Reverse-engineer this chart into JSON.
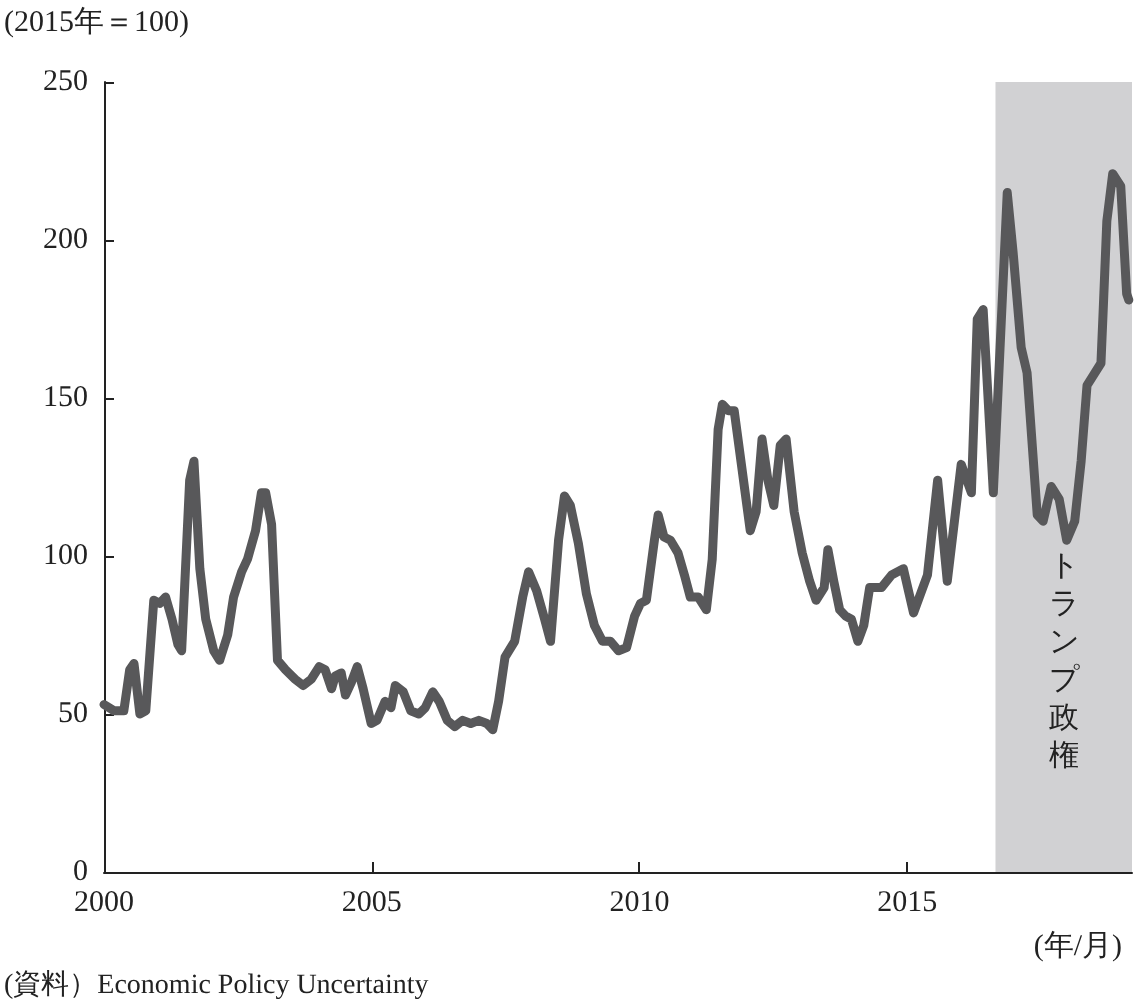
{
  "chart_data": {
    "type": "line",
    "ylabel": "(2015年＝100)",
    "xlabel": "(年/月)",
    "annotations": [
      "(資料）Economic Policy Uncertainty"
    ],
    "x": [
      2000.0,
      2000.19,
      2000.37,
      2000.48,
      2000.56,
      2000.67,
      2000.78,
      2000.93,
      2001.04,
      2001.15,
      2001.27,
      2001.38,
      2001.45,
      2001.6,
      2001.68,
      2001.79,
      2001.9,
      2002.05,
      2002.16,
      2002.31,
      2002.42,
      2002.57,
      2002.68,
      2002.83,
      2002.94,
      2003.02,
      2003.13,
      2003.24,
      2003.39,
      2003.57,
      2003.72,
      2003.87,
      2004.02,
      2004.13,
      2004.25,
      2004.32,
      2004.43,
      2004.51,
      2004.62,
      2004.73,
      2004.84,
      2004.99,
      2005.1,
      2005.25,
      2005.36,
      2005.44,
      2005.59,
      2005.73,
      2005.88,
      2006.0,
      2006.14,
      2006.26,
      2006.41,
      2006.55,
      2006.7,
      2006.85,
      2007.0,
      2007.15,
      2007.26,
      2007.37,
      2007.49,
      2007.67,
      2007.82,
      2007.93,
      2008.08,
      2008.23,
      2008.34,
      2008.49,
      2008.6,
      2008.71,
      2008.86,
      2009.01,
      2009.16,
      2009.31,
      2009.46,
      2009.61,
      2009.76,
      2009.91,
      2010.02,
      2010.13,
      2010.28,
      2010.35,
      2010.46,
      2010.58,
      2010.72,
      2010.84,
      2010.95,
      2011.1,
      2011.25,
      2011.36,
      2011.47,
      2011.55,
      2011.66,
      2011.77,
      2011.92,
      2012.07,
      2012.18,
      2012.29,
      2012.4,
      2012.51,
      2012.63,
      2012.74,
      2012.89,
      2013.04,
      2013.18,
      2013.3,
      2013.45,
      2013.52,
      2013.63,
      2013.74,
      2013.85,
      2013.96,
      2014.08,
      2014.19,
      2014.3,
      2014.52,
      2014.71,
      2014.93,
      2015.12,
      2015.38,
      2015.57,
      2015.75,
      2016.01,
      2016.2,
      2016.31,
      2016.42,
      2016.61,
      2016.87,
      2016.98,
      2017.13,
      2017.24,
      2017.43,
      2017.54,
      2017.69,
      2017.84,
      2017.98,
      2018.13,
      2018.25,
      2018.36,
      2018.62,
      2018.66,
      2018.73,
      2018.84,
      2018.99,
      2019.1,
      2019.14
    ],
    "series": [
      {
        "color": "#58585a",
        "values": [
          53,
          51,
          51,
          64,
          66,
          50,
          51,
          86,
          85,
          87,
          80,
          72,
          70,
          124,
          130,
          96,
          80,
          70,
          67,
          75,
          87,
          95,
          99,
          108,
          120,
          120,
          110,
          67,
          64,
          61,
          59,
          61,
          65,
          64,
          58,
          62,
          63,
          56,
          60,
          65,
          58,
          47,
          48,
          54,
          52,
          59,
          57,
          51,
          50,
          52,
          57,
          54,
          48,
          46,
          48,
          47,
          48,
          47,
          45,
          54,
          68,
          73,
          87,
          95,
          89,
          80,
          73,
          105,
          119,
          116,
          104,
          88,
          78,
          73,
          73,
          70,
          71,
          81,
          85,
          86,
          105,
          113,
          106,
          105,
          101,
          94,
          87,
          87,
          83,
          99,
          140,
          148,
          146,
          146,
          127,
          108,
          114,
          137,
          124,
          116,
          135,
          137,
          114,
          101,
          92,
          86,
          90,
          102,
          92,
          83,
          81,
          80,
          73,
          78,
          90,
          90,
          94,
          96,
          82,
          94,
          124,
          92,
          129,
          120,
          175,
          178,
          120,
          215,
          196,
          166,
          158,
          113,
          111,
          122,
          118,
          105,
          111,
          130,
          154,
          161,
          177,
          206,
          221,
          217,
          183,
          181
        ]
      }
    ],
    "xlim": [
      2000,
      2019.2
    ],
    "xticks": [
      2000,
      2005,
      2010,
      2015
    ],
    "ylim": [
      0,
      250
    ],
    "yticks": [
      0,
      50,
      100,
      150,
      200,
      250
    ],
    "bands": [
      {
        "axis": "x",
        "from": 2016.65,
        "to": 2019.2,
        "label": "トランプ政権",
        "color": "#d1d1d3"
      }
    ],
    "grid": false,
    "marker": "none",
    "line_style": "solid"
  }
}
